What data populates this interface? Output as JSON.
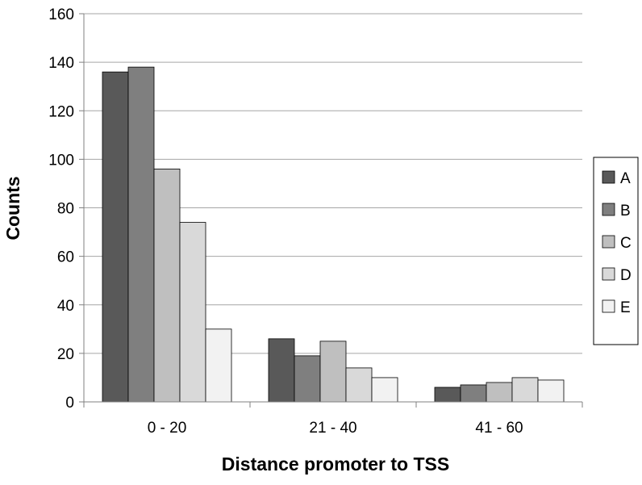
{
  "chart_data": {
    "type": "bar",
    "title": "",
    "xlabel": "Distance promoter to TSS",
    "ylabel": "Counts",
    "ylim": [
      0,
      160
    ],
    "yticks": [
      0,
      20,
      40,
      60,
      80,
      100,
      120,
      140,
      160
    ],
    "categories": [
      "0 - 20",
      "21 - 40",
      "41 - 60"
    ],
    "grid": true,
    "legend_position": "right",
    "series": [
      {
        "name": "A",
        "color": "#595959",
        "values": [
          136,
          26,
          6
        ]
      },
      {
        "name": "B",
        "color": "#7f7f7f",
        "values": [
          138,
          19,
          7
        ]
      },
      {
        "name": "C",
        "color": "#bfbfbf",
        "values": [
          96,
          25,
          8
        ]
      },
      {
        "name": "D",
        "color": "#d9d9d9",
        "values": [
          74,
          14,
          10
        ]
      },
      {
        "name": "E",
        "color": "#f2f2f2",
        "values": [
          30,
          10,
          9
        ]
      }
    ]
  }
}
